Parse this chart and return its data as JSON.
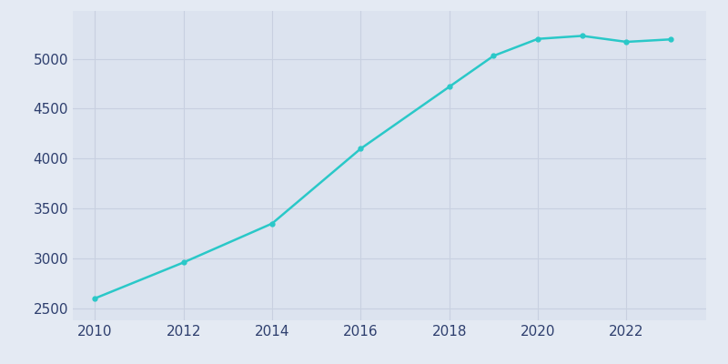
{
  "years": [
    2010,
    2012,
    2014,
    2016,
    2018,
    2019,
    2020,
    2021,
    2022,
    2023
  ],
  "population": [
    2600,
    2960,
    3350,
    4100,
    4720,
    5030,
    5200,
    5230,
    5170,
    5195
  ],
  "line_color": "#2ac8c8",
  "marker_color": "#2ac8c8",
  "background_color": "#e4eaf3",
  "axes_bg_color": "#dce3ef",
  "grid_color": "#c8d0e0",
  "tick_color": "#2e3f6e",
  "xlim": [
    2009.5,
    2023.8
  ],
  "ylim": [
    2380,
    5480
  ],
  "yticks": [
    2500,
    3000,
    3500,
    4000,
    4500,
    5000
  ],
  "xticks": [
    2010,
    2012,
    2014,
    2016,
    2018,
    2020,
    2022
  ]
}
